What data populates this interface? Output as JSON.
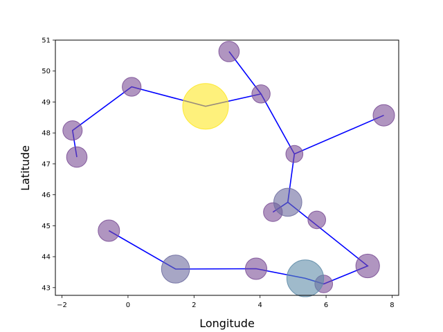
{
  "chart_data": {
    "type": "scatter",
    "title": "",
    "xlabel": "Longitude",
    "ylabel": "Latitude",
    "xlim": [
      -2.2,
      8.2
    ],
    "ylim": [
      42.75,
      51.0
    ],
    "xticks": [
      -2,
      0,
      2,
      4,
      6,
      8
    ],
    "yticks": [
      43,
      44,
      45,
      46,
      47,
      48,
      49,
      50,
      51
    ],
    "grid": false,
    "route_color": "#0000ff",
    "points": [
      {
        "x": -1.55,
        "y": 47.22,
        "size": 0.2,
        "color": "#7b4f96"
      },
      {
        "x": -1.68,
        "y": 48.08,
        "size": 0.18,
        "color": "#7b4f96"
      },
      {
        "x": 0.11,
        "y": 49.49,
        "size": 0.17,
        "color": "#7b4f96"
      },
      {
        "x": 2.35,
        "y": 48.86,
        "size": 1.0,
        "color": "#fde725"
      },
      {
        "x": 3.06,
        "y": 50.63,
        "size": 0.2,
        "color": "#7b4f96"
      },
      {
        "x": 4.03,
        "y": 49.26,
        "size": 0.16,
        "color": "#7b4f96"
      },
      {
        "x": 5.04,
        "y": 47.32,
        "size": 0.14,
        "color": "#7b4f96"
      },
      {
        "x": 7.75,
        "y": 48.57,
        "size": 0.22,
        "color": "#7b4f96"
      },
      {
        "x": 4.39,
        "y": 45.44,
        "size": 0.17,
        "color": "#7b4f96"
      },
      {
        "x": 4.84,
        "y": 45.76,
        "size": 0.38,
        "color": "#6d6b9e"
      },
      {
        "x": 5.72,
        "y": 45.19,
        "size": 0.15,
        "color": "#7b4f96"
      },
      {
        "x": 7.26,
        "y": 43.7,
        "size": 0.27,
        "color": "#7b4f96"
      },
      {
        "x": 5.93,
        "y": 43.12,
        "size": 0.15,
        "color": "#7b4f96"
      },
      {
        "x": 5.37,
        "y": 43.3,
        "size": 0.65,
        "color": "#5f8ca8"
      },
      {
        "x": 3.88,
        "y": 43.61,
        "size": 0.22,
        "color": "#7b4f96"
      },
      {
        "x": 1.44,
        "y": 43.6,
        "size": 0.38,
        "color": "#6d6b9e"
      },
      {
        "x": -0.58,
        "y": 44.84,
        "size": 0.22,
        "color": "#7b4f96"
      }
    ],
    "segments": [
      [
        [
          -1.55,
          47.22
        ],
        [
          -1.68,
          48.08
        ],
        [
          0.11,
          49.49
        ],
        [
          2.35,
          48.86
        ],
        [
          4.03,
          49.26
        ],
        [
          3.06,
          50.63
        ]
      ],
      [
        [
          4.03,
          49.26
        ],
        [
          5.04,
          47.32
        ],
        [
          7.75,
          48.57
        ]
      ],
      [
        [
          5.04,
          47.32
        ],
        [
          4.84,
          45.76
        ],
        [
          4.39,
          45.44
        ]
      ],
      [
        [
          4.84,
          45.76
        ],
        [
          7.26,
          43.7
        ],
        [
          5.93,
          43.12
        ],
        [
          5.37,
          43.3
        ],
        [
          3.88,
          43.61
        ],
        [
          1.44,
          43.6
        ],
        [
          -0.58,
          44.84
        ]
      ]
    ]
  }
}
